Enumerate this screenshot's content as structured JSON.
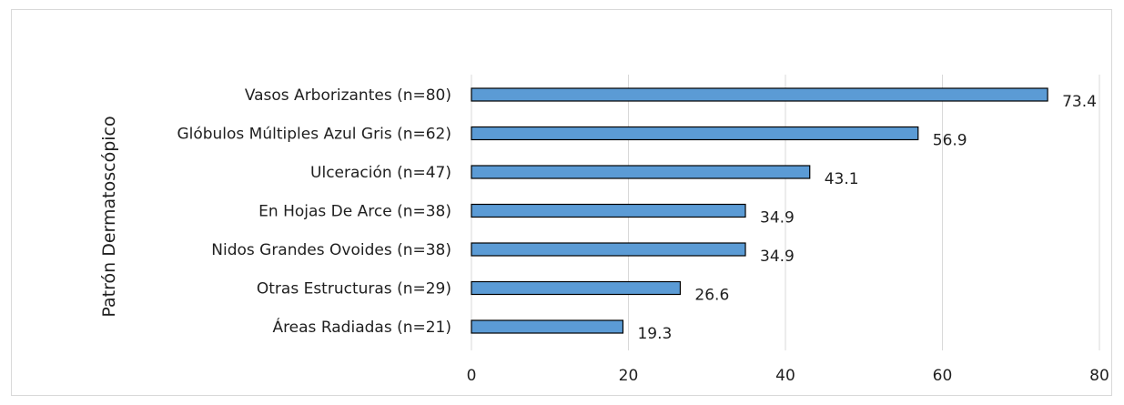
{
  "colors": {
    "bar_fill": "#5b9bd5",
    "bar_stroke": "#000000",
    "grid": "#d9d9d9",
    "text": "#1f1f1f"
  },
  "chart_data": {
    "type": "bar",
    "orientation": "horizontal",
    "title": "",
    "ylabel": "Patrón Dermatoscópico",
    "xlabel": "",
    "categories": [
      "Vasos Arborizantes (n=80)",
      "Glóbulos Múltiples Azul Gris (n=62)",
      "Ulceración (n=47)",
      "En Hojas De Arce (n=38)",
      "Nidos Grandes Ovoides (n=38)",
      "Otras Estructuras (n=29)",
      "Áreas Radiadas (n=21)"
    ],
    "values": [
      73.4,
      56.9,
      43.1,
      34.9,
      34.9,
      26.6,
      19.3
    ],
    "value_labels": [
      "73.4",
      "56.9",
      "43.1",
      "34.9",
      "34.9",
      "26.6",
      "19.3"
    ],
    "xlim": [
      0,
      80
    ],
    "x_ticks": [
      0,
      20,
      40,
      60,
      80
    ],
    "x_tick_labels": [
      "0",
      "20",
      "40",
      "60",
      "80"
    ],
    "grid": "vertical",
    "legend": "none"
  }
}
